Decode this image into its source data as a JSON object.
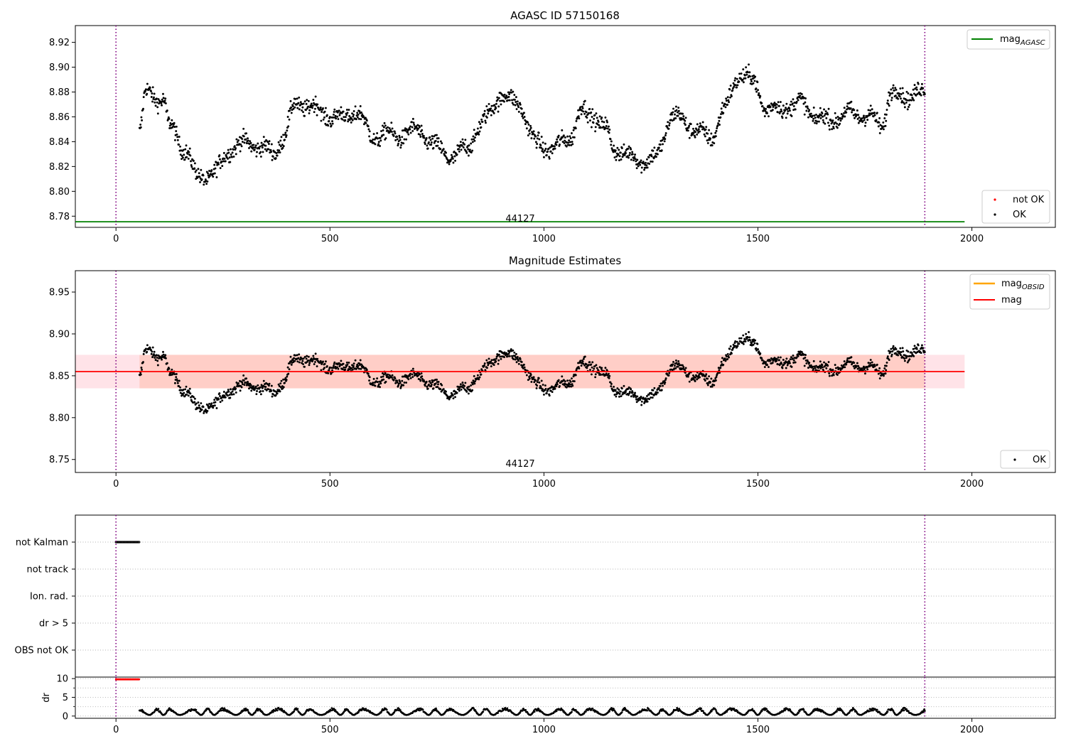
{
  "figure": {
    "title_top": "AGASC ID 57150168",
    "title_mid": "Magnitude Estimates",
    "obsid_label": "44127"
  },
  "colors": {
    "ok": "#000000",
    "not_ok": "#ff0000",
    "mag_agasc": "#008000",
    "mag_obsid": "#ffa500",
    "mag": "#ff0000",
    "band_pink": "#ffc0cb",
    "band_orange": "#ffa07a",
    "vline": "#800080",
    "grid": "#b0b0b0"
  },
  "chart_data": [
    {
      "type": "scatter",
      "title": "AGASC ID 57150168",
      "xlim": [
        -95,
        2195
      ],
      "ylim": [
        8.771,
        8.9335
      ],
      "xticks": [
        0,
        500,
        1000,
        1500,
        2000
      ],
      "yticks": [
        8.78,
        8.8,
        8.82,
        8.84,
        8.86,
        8.88,
        8.9,
        8.92
      ],
      "vlines": [
        0,
        1890
      ],
      "text_annotation": {
        "text": "44127",
        "x": 945,
        "y": 8.7752
      },
      "lines": [
        {
          "name": "mag_AGASC",
          "y": 8.7755,
          "x": [
            -95,
            1983
          ]
        }
      ],
      "legend_lines": [
        "mag",
        "AGASC"
      ],
      "legend_points": [
        "not OK",
        "OK"
      ],
      "series": [
        {
          "name": "OK",
          "x_range": [
            55,
            1890
          ],
          "n_points": 1700,
          "anchors": [
            [
              55,
              8.85
            ],
            [
              70,
              8.882
            ],
            [
              110,
              8.876
            ],
            [
              125,
              8.85
            ],
            [
              160,
              8.832
            ],
            [
              190,
              8.812
            ],
            [
              230,
              8.818
            ],
            [
              270,
              8.834
            ],
            [
              330,
              8.837
            ],
            [
              370,
              8.834
            ],
            [
              390,
              8.845
            ],
            [
              420,
              8.868
            ],
            [
              470,
              8.865
            ],
            [
              520,
              8.862
            ],
            [
              560,
              8.862
            ],
            [
              600,
              8.842
            ],
            [
              640,
              8.848
            ],
            [
              700,
              8.848
            ],
            [
              750,
              8.833
            ],
            [
              790,
              8.83
            ],
            [
              820,
              8.838
            ],
            [
              850,
              8.85
            ],
            [
              900,
              8.875
            ],
            [
              940,
              8.875
            ],
            [
              980,
              8.84
            ],
            [
              1020,
              8.83
            ],
            [
              1060,
              8.845
            ],
            [
              1090,
              8.868
            ],
            [
              1110,
              8.865
            ],
            [
              1140,
              8.85
            ],
            [
              1165,
              8.832
            ],
            [
              1200,
              8.828
            ],
            [
              1260,
              8.828
            ],
            [
              1300,
              8.858
            ],
            [
              1340,
              8.853
            ],
            [
              1390,
              8.846
            ],
            [
              1420,
              8.865
            ],
            [
              1460,
              8.892
            ],
            [
              1490,
              8.888
            ],
            [
              1520,
              8.87
            ],
            [
              1560,
              8.867
            ],
            [
              1600,
              8.868
            ],
            [
              1640,
              8.86
            ],
            [
              1700,
              8.862
            ],
            [
              1760,
              8.858
            ],
            [
              1790,
              8.855
            ],
            [
              1810,
              8.882
            ],
            [
              1850,
              8.877
            ],
            [
              1890,
              8.876
            ]
          ]
        }
      ]
    },
    {
      "type": "scatter",
      "title": "Magnitude Estimates",
      "xlim": [
        -95,
        2195
      ],
      "ylim": [
        8.7345,
        8.9755
      ],
      "xticks": [
        0,
        500,
        1000,
        1500,
        2000
      ],
      "yticks": [
        8.75,
        8.8,
        8.85,
        8.9,
        8.95
      ],
      "vlines": [
        0,
        1890
      ],
      "text_annotation": {
        "text": "44127",
        "x": 945,
        "y": 8.7445
      },
      "lines": [
        {
          "name": "mag_OBSID",
          "y": 8.855
        },
        {
          "name": "mag",
          "y": 8.855,
          "x": [
            -95,
            1983
          ]
        }
      ],
      "bands": [
        {
          "name": "mag range",
          "y": [
            8.835,
            8.875
          ],
          "x": [
            -95,
            1983
          ]
        },
        {
          "name": "mag_OBSID range",
          "y": [
            8.835,
            8.875
          ],
          "x": [
            55,
            1890
          ]
        }
      ],
      "legend_lines": [
        [
          "mag",
          "OBSID"
        ],
        "mag"
      ],
      "legend_points": [
        "OK"
      ]
    },
    {
      "type": "scatter",
      "xlim": [
        -95,
        2195
      ],
      "yticklabels": [
        "not Kalman",
        "not track",
        "Ion. rad.",
        "dr > 5",
        "OBS not OK"
      ],
      "flags": {
        "not Kalman": [
          0,
          55
        ]
      },
      "vlines": [
        0,
        1890
      ]
    },
    {
      "type": "scatter",
      "ylabel": "dr",
      "xlim": [
        -95,
        2195
      ],
      "ylim": [
        -0.6,
        10.4
      ],
      "yticks": [
        0,
        5,
        10
      ],
      "xticks": [
        0,
        500,
        1000,
        1500,
        2000
      ],
      "vlines": [
        0,
        1890
      ],
      "series": [
        {
          "name": "not OK",
          "y": 9.8,
          "x_range": [
            0,
            55
          ]
        },
        {
          "name": "OK",
          "x_range": [
            55,
            1890
          ],
          "y_range": [
            0.3,
            2.2
          ]
        }
      ]
    }
  ]
}
